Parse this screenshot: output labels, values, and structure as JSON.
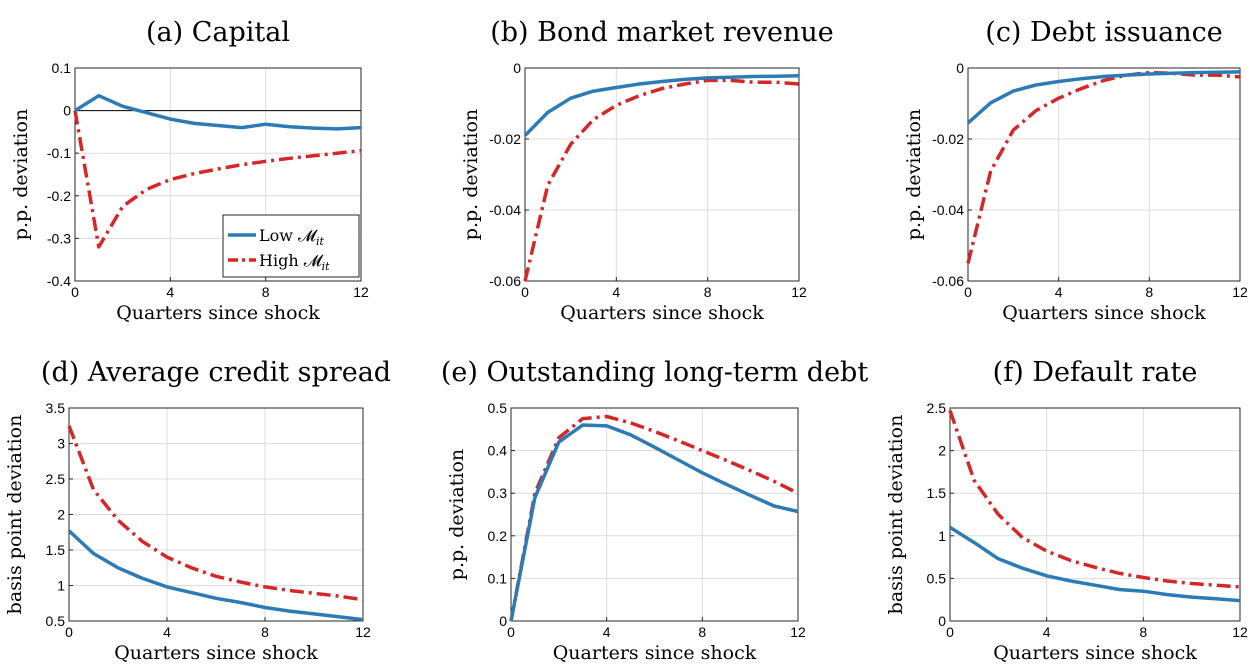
{
  "legend": {
    "low_label": "Low 𝓜",
    "low_sub": "it",
    "high_label": "High 𝓜",
    "high_sub": "it"
  },
  "colors": {
    "low": "#2c7bb6",
    "high": "#d62728"
  },
  "chart_data": [
    {
      "type": "line",
      "title": "(a) Capital",
      "xlabel": "Quarters since shock",
      "ylabel": "p.p. deviation",
      "xlim": [
        0,
        12
      ],
      "ylim": [
        -0.4,
        0.1
      ],
      "xticks": [
        0,
        4,
        8,
        12
      ],
      "yticks": [
        -0.4,
        -0.3,
        -0.2,
        -0.1,
        0,
        0.1
      ],
      "ytick_labels": [
        "-0.4",
        "-0.3",
        "-0.2",
        "-0.1",
        "0",
        "0.1"
      ],
      "zero_line": true,
      "legend_position": "bottom-right",
      "x": [
        0,
        1,
        2,
        3,
        4,
        5,
        6,
        7,
        8,
        9,
        10,
        11,
        12
      ],
      "series": [
        {
          "name": "Low 𝓜it",
          "style": "solid",
          "values": [
            0,
            0.035,
            0.01,
            -0.005,
            -0.02,
            -0.03,
            -0.035,
            -0.04,
            -0.032,
            -0.038,
            -0.041,
            -0.043,
            -0.04
          ]
        },
        {
          "name": "High 𝓜it",
          "style": "dashdot",
          "values": [
            0,
            -0.32,
            -0.225,
            -0.185,
            -0.162,
            -0.148,
            -0.137,
            -0.127,
            -0.119,
            -0.112,
            -0.106,
            -0.1,
            -0.094
          ]
        }
      ]
    },
    {
      "type": "line",
      "title": "(b) Bond market revenue",
      "xlabel": "Quarters since shock",
      "ylabel": "p.p. deviation",
      "xlim": [
        0,
        12
      ],
      "ylim": [
        -0.06,
        0
      ],
      "xticks": [
        0,
        4,
        8,
        12
      ],
      "yticks": [
        -0.06,
        -0.04,
        -0.02,
        0
      ],
      "ytick_labels": [
        "-0.06",
        "-0.04",
        "-0.02",
        "0"
      ],
      "zero_line": false,
      "x": [
        0,
        1,
        2,
        3,
        4,
        5,
        6,
        7,
        8,
        9,
        10,
        11,
        12
      ],
      "series": [
        {
          "name": "Low 𝓜it",
          "style": "solid",
          "values": [
            -0.019,
            -0.0125,
            -0.0085,
            -0.0065,
            -0.0055,
            -0.0045,
            -0.0038,
            -0.0032,
            -0.0028,
            -0.0026,
            -0.0024,
            -0.0023,
            -0.0022
          ]
        },
        {
          "name": "High 𝓜it",
          "style": "dashdot",
          "values": [
            -0.06,
            -0.033,
            -0.0215,
            -0.0145,
            -0.0105,
            -0.0078,
            -0.0058,
            -0.0045,
            -0.0035,
            -0.0035,
            -0.004,
            -0.004,
            -0.0045
          ]
        }
      ]
    },
    {
      "type": "line",
      "title": "(c) Debt issuance",
      "xlabel": "Quarters since shock",
      "ylabel": "p.p. deviation",
      "xlim": [
        0,
        12
      ],
      "ylim": [
        -0.06,
        0
      ],
      "xticks": [
        0,
        4,
        8,
        12
      ],
      "yticks": [
        -0.06,
        -0.04,
        -0.02,
        0
      ],
      "ytick_labels": [
        "-0.06",
        "-0.04",
        "-0.02",
        "0"
      ],
      "zero_line": false,
      "x": [
        0,
        1,
        2,
        3,
        4,
        5,
        6,
        7,
        8,
        9,
        10,
        11,
        12
      ],
      "series": [
        {
          "name": "Low 𝓜it",
          "style": "solid",
          "values": [
            -0.0155,
            -0.0098,
            -0.0065,
            -0.0048,
            -0.0038,
            -0.003,
            -0.0024,
            -0.002,
            -0.0017,
            -0.0015,
            -0.0013,
            -0.0012,
            -0.0011
          ]
        },
        {
          "name": "High 𝓜it",
          "style": "dashdot",
          "values": [
            -0.055,
            -0.029,
            -0.0175,
            -0.012,
            -0.0085,
            -0.0058,
            -0.0035,
            -0.002,
            -0.0013,
            -0.0015,
            -0.002,
            -0.002,
            -0.0025
          ]
        }
      ]
    },
    {
      "type": "line",
      "title": "(d) Average credit spread",
      "xlabel": "Quarters since shock",
      "ylabel": "basis point deviation",
      "xlim": [
        0,
        12
      ],
      "ylim": [
        0.5,
        3.5
      ],
      "xticks": [
        0,
        4,
        8,
        12
      ],
      "yticks": [
        0.5,
        1,
        1.5,
        2,
        2.5,
        3,
        3.5
      ],
      "ytick_labels": [
        "0.5",
        "1",
        "1.5",
        "2",
        "2.5",
        "3",
        "3.5"
      ],
      "zero_line": false,
      "x": [
        0,
        1,
        2,
        3,
        4,
        5,
        6,
        7,
        8,
        9,
        10,
        11,
        12
      ],
      "series": [
        {
          "name": "Low 𝓜it",
          "style": "solid",
          "values": [
            1.77,
            1.45,
            1.25,
            1.1,
            0.98,
            0.9,
            0.82,
            0.76,
            0.69,
            0.64,
            0.6,
            0.56,
            0.52
          ]
        },
        {
          "name": "High 𝓜it",
          "style": "dashdot",
          "values": [
            3.25,
            2.35,
            1.92,
            1.62,
            1.4,
            1.25,
            1.13,
            1.05,
            0.98,
            0.93,
            0.89,
            0.85,
            0.8
          ]
        }
      ]
    },
    {
      "type": "line",
      "title": "(e) Outstanding long-term debt",
      "xlabel": "Quarters since shock",
      "ylabel": "p.p. deviation",
      "xlim": [
        0,
        12
      ],
      "ylim": [
        0,
        0.5
      ],
      "xticks": [
        0,
        4,
        8,
        12
      ],
      "yticks": [
        0,
        0.1,
        0.2,
        0.3,
        0.4,
        0.5
      ],
      "ytick_labels": [
        "0",
        "0.1",
        "0.2",
        "0.3",
        "0.4",
        "0.5"
      ],
      "zero_line": false,
      "x": [
        0,
        1,
        2,
        3,
        4,
        5,
        6,
        7,
        8,
        9,
        10,
        11,
        12
      ],
      "series": [
        {
          "name": "Low 𝓜it",
          "style": "solid",
          "values": [
            0,
            0.29,
            0.42,
            0.46,
            0.458,
            0.437,
            0.408,
            0.378,
            0.348,
            0.321,
            0.295,
            0.27,
            0.257
          ]
        },
        {
          "name": "High 𝓜it",
          "style": "dashdot",
          "values": [
            0,
            0.3,
            0.43,
            0.475,
            0.48,
            0.465,
            0.445,
            0.423,
            0.4,
            0.377,
            0.353,
            0.328,
            0.3
          ]
        }
      ]
    },
    {
      "type": "line",
      "title": "(f) Default rate",
      "xlabel": "Quarters since shock",
      "ylabel": "basis point deviation",
      "xlim": [
        0,
        12
      ],
      "ylim": [
        0,
        2.5
      ],
      "xticks": [
        0,
        4,
        8,
        12
      ],
      "yticks": [
        0,
        0.5,
        1,
        1.5,
        2,
        2.5
      ],
      "ytick_labels": [
        "0",
        "0.5",
        "1",
        "1.5",
        "2",
        "2.5"
      ],
      "zero_line": false,
      "x": [
        0,
        1,
        2,
        3,
        4,
        5,
        6,
        7,
        8,
        9,
        10,
        11,
        12
      ],
      "series": [
        {
          "name": "Low 𝓜it",
          "style": "solid",
          "values": [
            1.1,
            0.92,
            0.73,
            0.62,
            0.53,
            0.47,
            0.42,
            0.37,
            0.35,
            0.31,
            0.28,
            0.26,
            0.24
          ]
        },
        {
          "name": "High 𝓜it",
          "style": "dashdot",
          "values": [
            2.47,
            1.65,
            1.25,
            0.98,
            0.82,
            0.71,
            0.63,
            0.56,
            0.51,
            0.47,
            0.44,
            0.42,
            0.4
          ]
        }
      ]
    }
  ]
}
